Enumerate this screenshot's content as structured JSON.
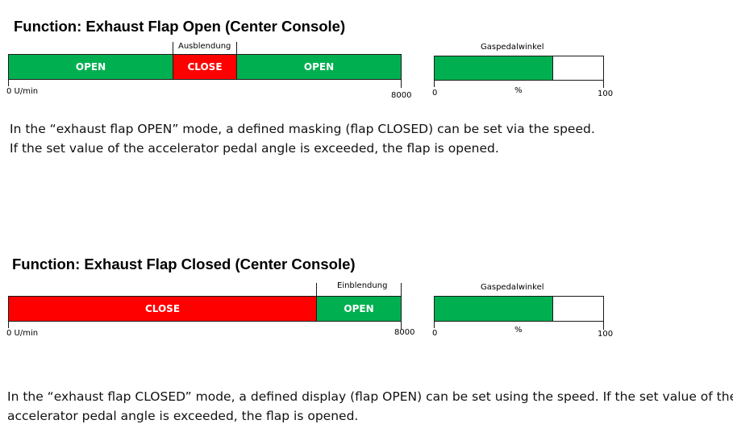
{
  "diagram1": {
    "title": "Function: Exhaust Flap Open (Center Console)",
    "zone_label": "Ausblendung",
    "segments": [
      "OPEN",
      "CLOSE",
      "OPEN"
    ],
    "speed_min": "0 U/min",
    "speed_max": "8000",
    "gauge_label": "Gaspedalwinkel",
    "gauge_unit": "%",
    "gauge_min": "0",
    "gauge_max": "100",
    "gauge_fill_percent": 70,
    "description": [
      "In the “exhaust flap OPEN” mode, a defined masking (flap CLOSED) can be set via the speed.",
      "If the set value of the accelerator pedal angle is exceeded, the flap is opened."
    ]
  },
  "diagram2": {
    "title": "Function: Exhaust Flap Closed (Center Console)",
    "zone_label": "Einblendung",
    "segments": [
      "CLOSE",
      "OPEN"
    ],
    "speed_min": "0 U/min",
    "speed_max": "8000",
    "gauge_label": "Gaspedalwinkel",
    "gauge_unit": "%",
    "gauge_min": "0",
    "gauge_max": "100",
    "gauge_fill_percent": 70,
    "description": [
      "In the “exhaust flap CLOSED” mode, a defined display (flap OPEN) can be set using the speed. If the set value of the",
      "accelerator pedal angle is exceeded, the flap is opened."
    ]
  },
  "colors": {
    "open": "#00b050",
    "close": "#ff0000"
  }
}
